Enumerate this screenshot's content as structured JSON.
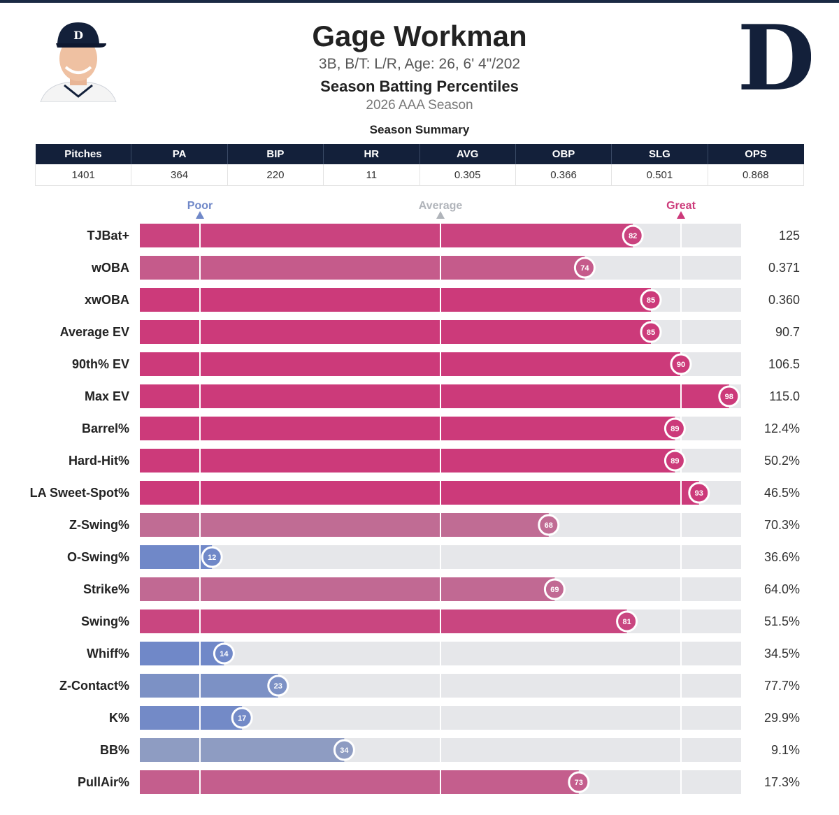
{
  "player": {
    "name": "Gage Workman",
    "meta": "3B, B/T: L/R, Age: 26, 6' 4\"/202",
    "headshot_icon": "player-headshot-icon",
    "logo_icon": "detroit-tigers-d-logo-icon"
  },
  "chart_title": "Season Batting Percentiles",
  "season_label": "2026 AAA Season",
  "summary": {
    "title": "Season Summary",
    "headers": [
      "Pitches",
      "PA",
      "BIP",
      "HR",
      "AVG",
      "OBP",
      "SLG",
      "OPS"
    ],
    "values": [
      "1401",
      "364",
      "220",
      "11",
      "0.305",
      "0.366",
      "0.501",
      "0.868"
    ]
  },
  "colors": {
    "navy": "#13203a",
    "great": "#cc3a7a",
    "poor": "#7088c8",
    "average": "#b0b4ba",
    "track": "#e6e7ea"
  },
  "chart_data": {
    "type": "bar",
    "orientation": "horizontal",
    "xlim": [
      0,
      100
    ],
    "reference_lines": [
      {
        "label": "Poor",
        "value": 10
      },
      {
        "label": "Average",
        "value": 50
      },
      {
        "label": "Great",
        "value": 90
      }
    ],
    "categories": [
      "TJBat+",
      "wOBA",
      "xwOBA",
      "Average EV",
      "90th% EV",
      "Max EV",
      "Barrel%",
      "Hard-Hit%",
      "LA Sweet-Spot%",
      "Z-Swing%",
      "O-Swing%",
      "Strike%",
      "Swing%",
      "Whiff%",
      "Z-Contact%",
      "K%",
      "BB%",
      "PullAir%"
    ],
    "percentiles": [
      82,
      74,
      85,
      85,
      90,
      98,
      89,
      89,
      93,
      68,
      12,
      69,
      81,
      14,
      23,
      17,
      34,
      73
    ],
    "stat_values": [
      "125",
      "0.371",
      "0.360",
      "90.7",
      "106.5",
      "115.0",
      "12.4%",
      "50.2%",
      "46.5%",
      "70.3%",
      "36.6%",
      "64.0%",
      "51.5%",
      "34.5%",
      "77.7%",
      "29.9%",
      "9.1%",
      "17.3%"
    ]
  }
}
